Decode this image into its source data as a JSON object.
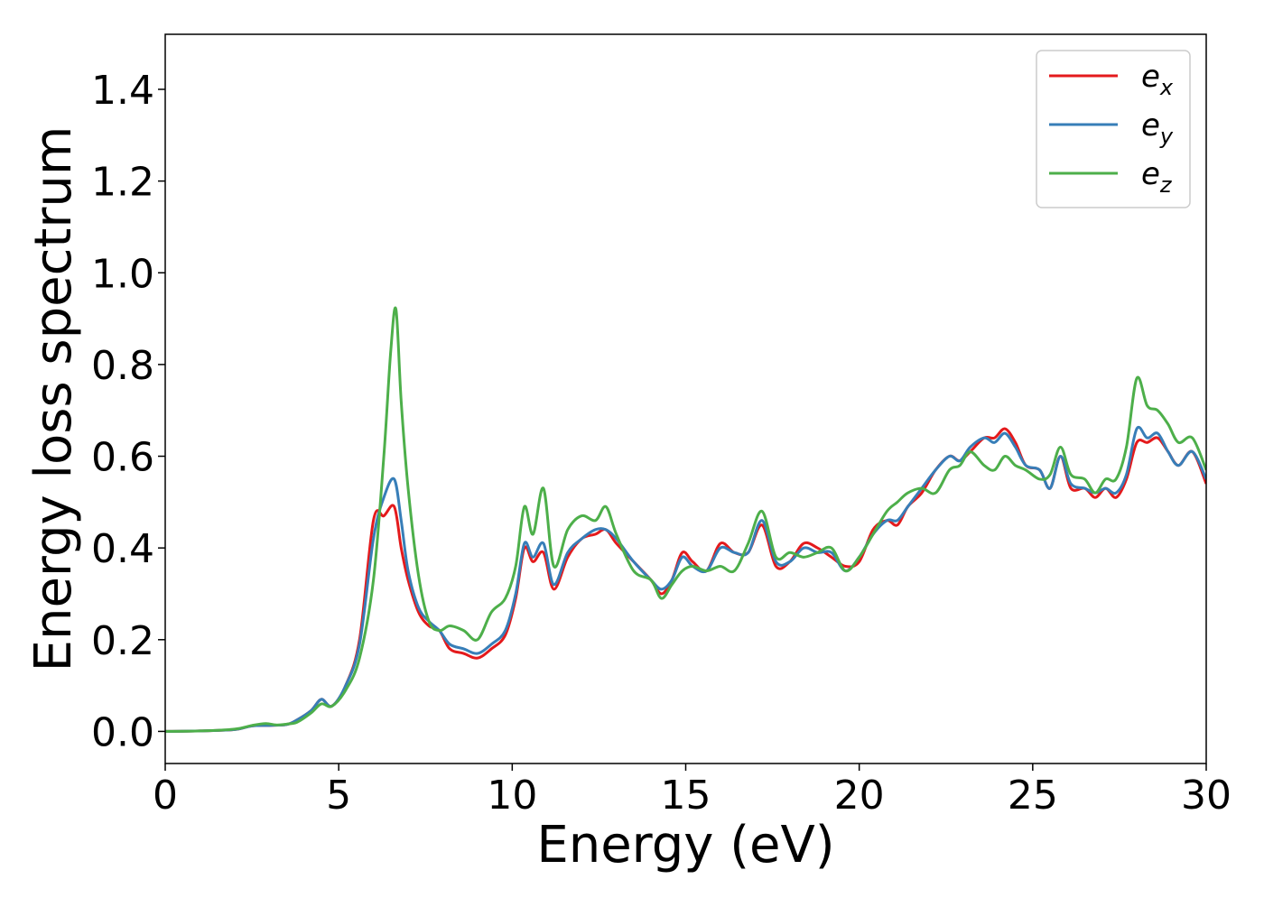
{
  "chart_data": {
    "type": "line",
    "title": "",
    "xlabel": "Energy (eV)",
    "ylabel": "Energy loss spectrum",
    "xlim": [
      0,
      30
    ],
    "ylim": [
      -0.07,
      1.52
    ],
    "xticks": [
      0,
      5,
      10,
      15,
      20,
      25,
      30
    ],
    "xtick_labels": [
      "0",
      "5",
      "10",
      "15",
      "20",
      "25",
      "30"
    ],
    "yticks": [
      0.0,
      0.2,
      0.4,
      0.6,
      0.8,
      1.0,
      1.2,
      1.4
    ],
    "ytick_labels": [
      "0.0",
      "0.2",
      "0.4",
      "0.6",
      "0.8",
      "1.0",
      "1.2",
      "1.4"
    ],
    "grid": false,
    "legend_position": "top-right",
    "series": [
      {
        "name": "e_x",
        "legend_base": "e",
        "legend_sub": "x",
        "color": "#e41a1c",
        "x": [
          0,
          1,
          2,
          2.5,
          3,
          3.5,
          3.8,
          4.2,
          4.5,
          4.8,
          5.2,
          5.6,
          6.0,
          6.3,
          6.6,
          6.8,
          7.0,
          7.3,
          7.6,
          7.9,
          8.2,
          8.6,
          9.0,
          9.4,
          9.8,
          10.1,
          10.35,
          10.6,
          10.9,
          11.2,
          11.6,
          12.0,
          12.4,
          12.7,
          13.0,
          13.5,
          14.0,
          14.3,
          14.6,
          14.9,
          15.2,
          15.6,
          16.0,
          16.4,
          16.8,
          17.2,
          17.6,
          18.0,
          18.4,
          18.8,
          19.2,
          19.6,
          20.0,
          20.4,
          20.8,
          21.1,
          21.4,
          21.8,
          22.2,
          22.6,
          22.9,
          23.2,
          23.6,
          23.9,
          24.2,
          24.5,
          24.8,
          25.2,
          25.5,
          25.8,
          26.1,
          26.5,
          26.8,
          27.1,
          27.4,
          27.7,
          28.0,
          28.3,
          28.6,
          28.9,
          29.2,
          29.6,
          30.0
        ],
        "y": [
          0.0,
          0.001,
          0.004,
          0.012,
          0.013,
          0.015,
          0.025,
          0.045,
          0.07,
          0.055,
          0.1,
          0.2,
          0.46,
          0.47,
          0.49,
          0.4,
          0.33,
          0.26,
          0.23,
          0.22,
          0.18,
          0.17,
          0.16,
          0.18,
          0.21,
          0.29,
          0.4,
          0.37,
          0.39,
          0.31,
          0.38,
          0.42,
          0.43,
          0.44,
          0.41,
          0.37,
          0.33,
          0.3,
          0.33,
          0.39,
          0.37,
          0.35,
          0.41,
          0.39,
          0.39,
          0.45,
          0.36,
          0.37,
          0.41,
          0.4,
          0.38,
          0.36,
          0.37,
          0.44,
          0.46,
          0.45,
          0.49,
          0.52,
          0.57,
          0.6,
          0.59,
          0.61,
          0.64,
          0.64,
          0.66,
          0.63,
          0.58,
          0.57,
          0.53,
          0.6,
          0.53,
          0.53,
          0.51,
          0.53,
          0.51,
          0.55,
          0.63,
          0.63,
          0.64,
          0.61,
          0.58,
          0.61,
          0.54
        ]
      },
      {
        "name": "e_y",
        "legend_base": "e",
        "legend_sub": "y",
        "color": "#377eb8",
        "x": [
          0,
          1,
          2,
          2.5,
          3,
          3.5,
          3.8,
          4.2,
          4.5,
          4.8,
          5.2,
          5.6,
          6.0,
          6.3,
          6.6,
          6.8,
          7.0,
          7.3,
          7.6,
          7.9,
          8.2,
          8.6,
          9.0,
          9.4,
          9.8,
          10.1,
          10.35,
          10.6,
          10.9,
          11.2,
          11.6,
          12.0,
          12.4,
          12.7,
          13.0,
          13.5,
          14.0,
          14.3,
          14.6,
          14.9,
          15.2,
          15.6,
          16.0,
          16.4,
          16.8,
          17.2,
          17.6,
          18.0,
          18.4,
          18.8,
          19.2,
          19.6,
          20.0,
          20.4,
          20.8,
          21.1,
          21.4,
          21.8,
          22.2,
          22.6,
          22.9,
          23.2,
          23.6,
          23.9,
          24.2,
          24.5,
          24.8,
          25.2,
          25.5,
          25.8,
          26.1,
          26.5,
          26.8,
          27.1,
          27.4,
          27.7,
          28.0,
          28.3,
          28.6,
          28.9,
          29.2,
          29.6,
          30.0
        ],
        "y": [
          0.0,
          0.001,
          0.004,
          0.012,
          0.013,
          0.015,
          0.025,
          0.045,
          0.07,
          0.055,
          0.1,
          0.19,
          0.42,
          0.51,
          0.55,
          0.46,
          0.35,
          0.27,
          0.24,
          0.22,
          0.19,
          0.18,
          0.17,
          0.19,
          0.22,
          0.3,
          0.41,
          0.38,
          0.41,
          0.32,
          0.39,
          0.42,
          0.44,
          0.44,
          0.42,
          0.37,
          0.33,
          0.31,
          0.33,
          0.38,
          0.36,
          0.35,
          0.4,
          0.39,
          0.39,
          0.46,
          0.37,
          0.37,
          0.4,
          0.39,
          0.39,
          0.35,
          0.38,
          0.43,
          0.46,
          0.46,
          0.49,
          0.53,
          0.57,
          0.6,
          0.59,
          0.62,
          0.64,
          0.63,
          0.65,
          0.62,
          0.58,
          0.57,
          0.53,
          0.6,
          0.54,
          0.53,
          0.52,
          0.53,
          0.52,
          0.56,
          0.66,
          0.64,
          0.65,
          0.61,
          0.58,
          0.61,
          0.55
        ]
      },
      {
        "name": "e_z",
        "legend_base": "e",
        "legend_sub": "z",
        "color": "#4daf4a",
        "x": [
          0,
          1,
          2,
          2.5,
          2.9,
          3.2,
          3.5,
          3.8,
          4.2,
          4.5,
          4.8,
          5.2,
          5.6,
          6.0,
          6.3,
          6.5,
          6.65,
          6.8,
          7.0,
          7.3,
          7.6,
          7.9,
          8.2,
          8.6,
          9.0,
          9.4,
          9.8,
          10.1,
          10.35,
          10.6,
          10.9,
          11.2,
          11.6,
          12.0,
          12.4,
          12.7,
          13.0,
          13.5,
          14.0,
          14.3,
          14.6,
          14.9,
          15.2,
          15.6,
          16.0,
          16.4,
          16.8,
          17.2,
          17.6,
          18.0,
          18.4,
          18.8,
          19.2,
          19.6,
          20.0,
          20.4,
          20.8,
          21.1,
          21.4,
          21.8,
          22.2,
          22.6,
          22.9,
          23.2,
          23.6,
          23.9,
          24.2,
          24.5,
          24.8,
          25.2,
          25.5,
          25.8,
          26.1,
          26.5,
          26.8,
          27.1,
          27.4,
          27.7,
          28.0,
          28.3,
          28.6,
          28.9,
          29.2,
          29.6,
          30.0
        ],
        "y": [
          0.0,
          0.001,
          0.005,
          0.013,
          0.017,
          0.014,
          0.016,
          0.02,
          0.04,
          0.06,
          0.055,
          0.09,
          0.16,
          0.33,
          0.6,
          0.83,
          0.92,
          0.72,
          0.53,
          0.34,
          0.24,
          0.22,
          0.23,
          0.22,
          0.2,
          0.26,
          0.29,
          0.36,
          0.49,
          0.43,
          0.53,
          0.36,
          0.44,
          0.47,
          0.46,
          0.49,
          0.43,
          0.35,
          0.33,
          0.29,
          0.32,
          0.35,
          0.36,
          0.35,
          0.36,
          0.35,
          0.41,
          0.48,
          0.38,
          0.39,
          0.38,
          0.39,
          0.4,
          0.35,
          0.38,
          0.43,
          0.48,
          0.5,
          0.52,
          0.53,
          0.52,
          0.57,
          0.58,
          0.61,
          0.58,
          0.57,
          0.6,
          0.58,
          0.57,
          0.55,
          0.56,
          0.62,
          0.56,
          0.55,
          0.52,
          0.55,
          0.55,
          0.62,
          0.77,
          0.71,
          0.7,
          0.67,
          0.63,
          0.64,
          0.57
        ]
      }
    ]
  }
}
